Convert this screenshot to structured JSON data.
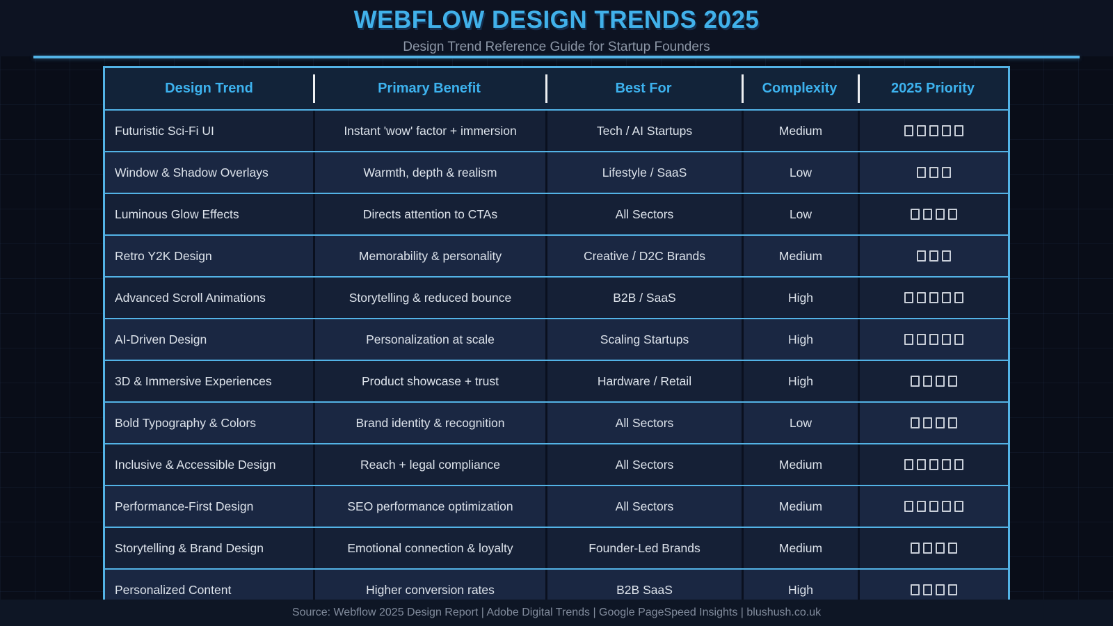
{
  "page": {
    "title": "WEBFLOW DESIGN TRENDS 2025",
    "subtitle": "Design Trend Reference Guide for Startup Founders",
    "footer": "Source: Webflow 2025 Design Report | Adobe Digital Trends | Google PageSpeed Insights | blushush.co.uk"
  },
  "colors": {
    "accent": "#53b3e6",
    "title": "#41b1ea",
    "header_text": "#3db2ee",
    "page_bg": "#090d18",
    "band_bg": "#0d1322",
    "row_odd": "#152036",
    "row_even": "#1a2742",
    "header_row_bg": "#122339",
    "cell_text": "#dde3eb",
    "subtitle_text": "#8d97a7",
    "footer_bg": "#0e1625",
    "footer_text": "#828c9d",
    "box_border": "#c9cfd9",
    "col_sep": "#0a101f"
  },
  "table": {
    "columns": [
      "Design Trend",
      "Primary Benefit",
      "Best For",
      "Complexity",
      "2025 Priority"
    ],
    "priority_glyph": "tofu-box",
    "rows": [
      {
        "trend": "Futuristic Sci-Fi UI",
        "benefit": "Instant 'wow' factor + immersion",
        "best_for": "Tech / AI Startups",
        "complexity": "Medium",
        "priority": 5
      },
      {
        "trend": "Window & Shadow Overlays",
        "benefit": "Warmth, depth & realism",
        "best_for": "Lifestyle / SaaS",
        "complexity": "Low",
        "priority": 3
      },
      {
        "trend": "Luminous Glow Effects",
        "benefit": "Directs attention to CTAs",
        "best_for": "All Sectors",
        "complexity": "Low",
        "priority": 4
      },
      {
        "trend": "Retro Y2K Design",
        "benefit": "Memorability & personality",
        "best_for": "Creative / D2C Brands",
        "complexity": "Medium",
        "priority": 3
      },
      {
        "trend": "Advanced Scroll Animations",
        "benefit": "Storytelling & reduced bounce",
        "best_for": "B2B / SaaS",
        "complexity": "High",
        "priority": 5
      },
      {
        "trend": "AI-Driven Design",
        "benefit": "Personalization at scale",
        "best_for": "Scaling Startups",
        "complexity": "High",
        "priority": 5
      },
      {
        "trend": "3D & Immersive Experiences",
        "benefit": "Product showcase + trust",
        "best_for": "Hardware / Retail",
        "complexity": "High",
        "priority": 4
      },
      {
        "trend": "Bold Typography & Colors",
        "benefit": "Brand identity & recognition",
        "best_for": "All Sectors",
        "complexity": "Low",
        "priority": 4
      },
      {
        "trend": "Inclusive & Accessible Design",
        "benefit": "Reach + legal compliance",
        "best_for": "All Sectors",
        "complexity": "Medium",
        "priority": 5
      },
      {
        "trend": "Performance-First Design",
        "benefit": "SEO performance optimization",
        "best_for": "All Sectors",
        "complexity": "Medium",
        "priority": 5
      },
      {
        "trend": "Storytelling & Brand Design",
        "benefit": "Emotional connection & loyalty",
        "best_for": "Founder-Led Brands",
        "complexity": "Medium",
        "priority": 4
      },
      {
        "trend": "Personalized Content",
        "benefit": "Higher conversion rates",
        "best_for": "B2B SaaS",
        "complexity": "High",
        "priority": 4
      }
    ]
  }
}
